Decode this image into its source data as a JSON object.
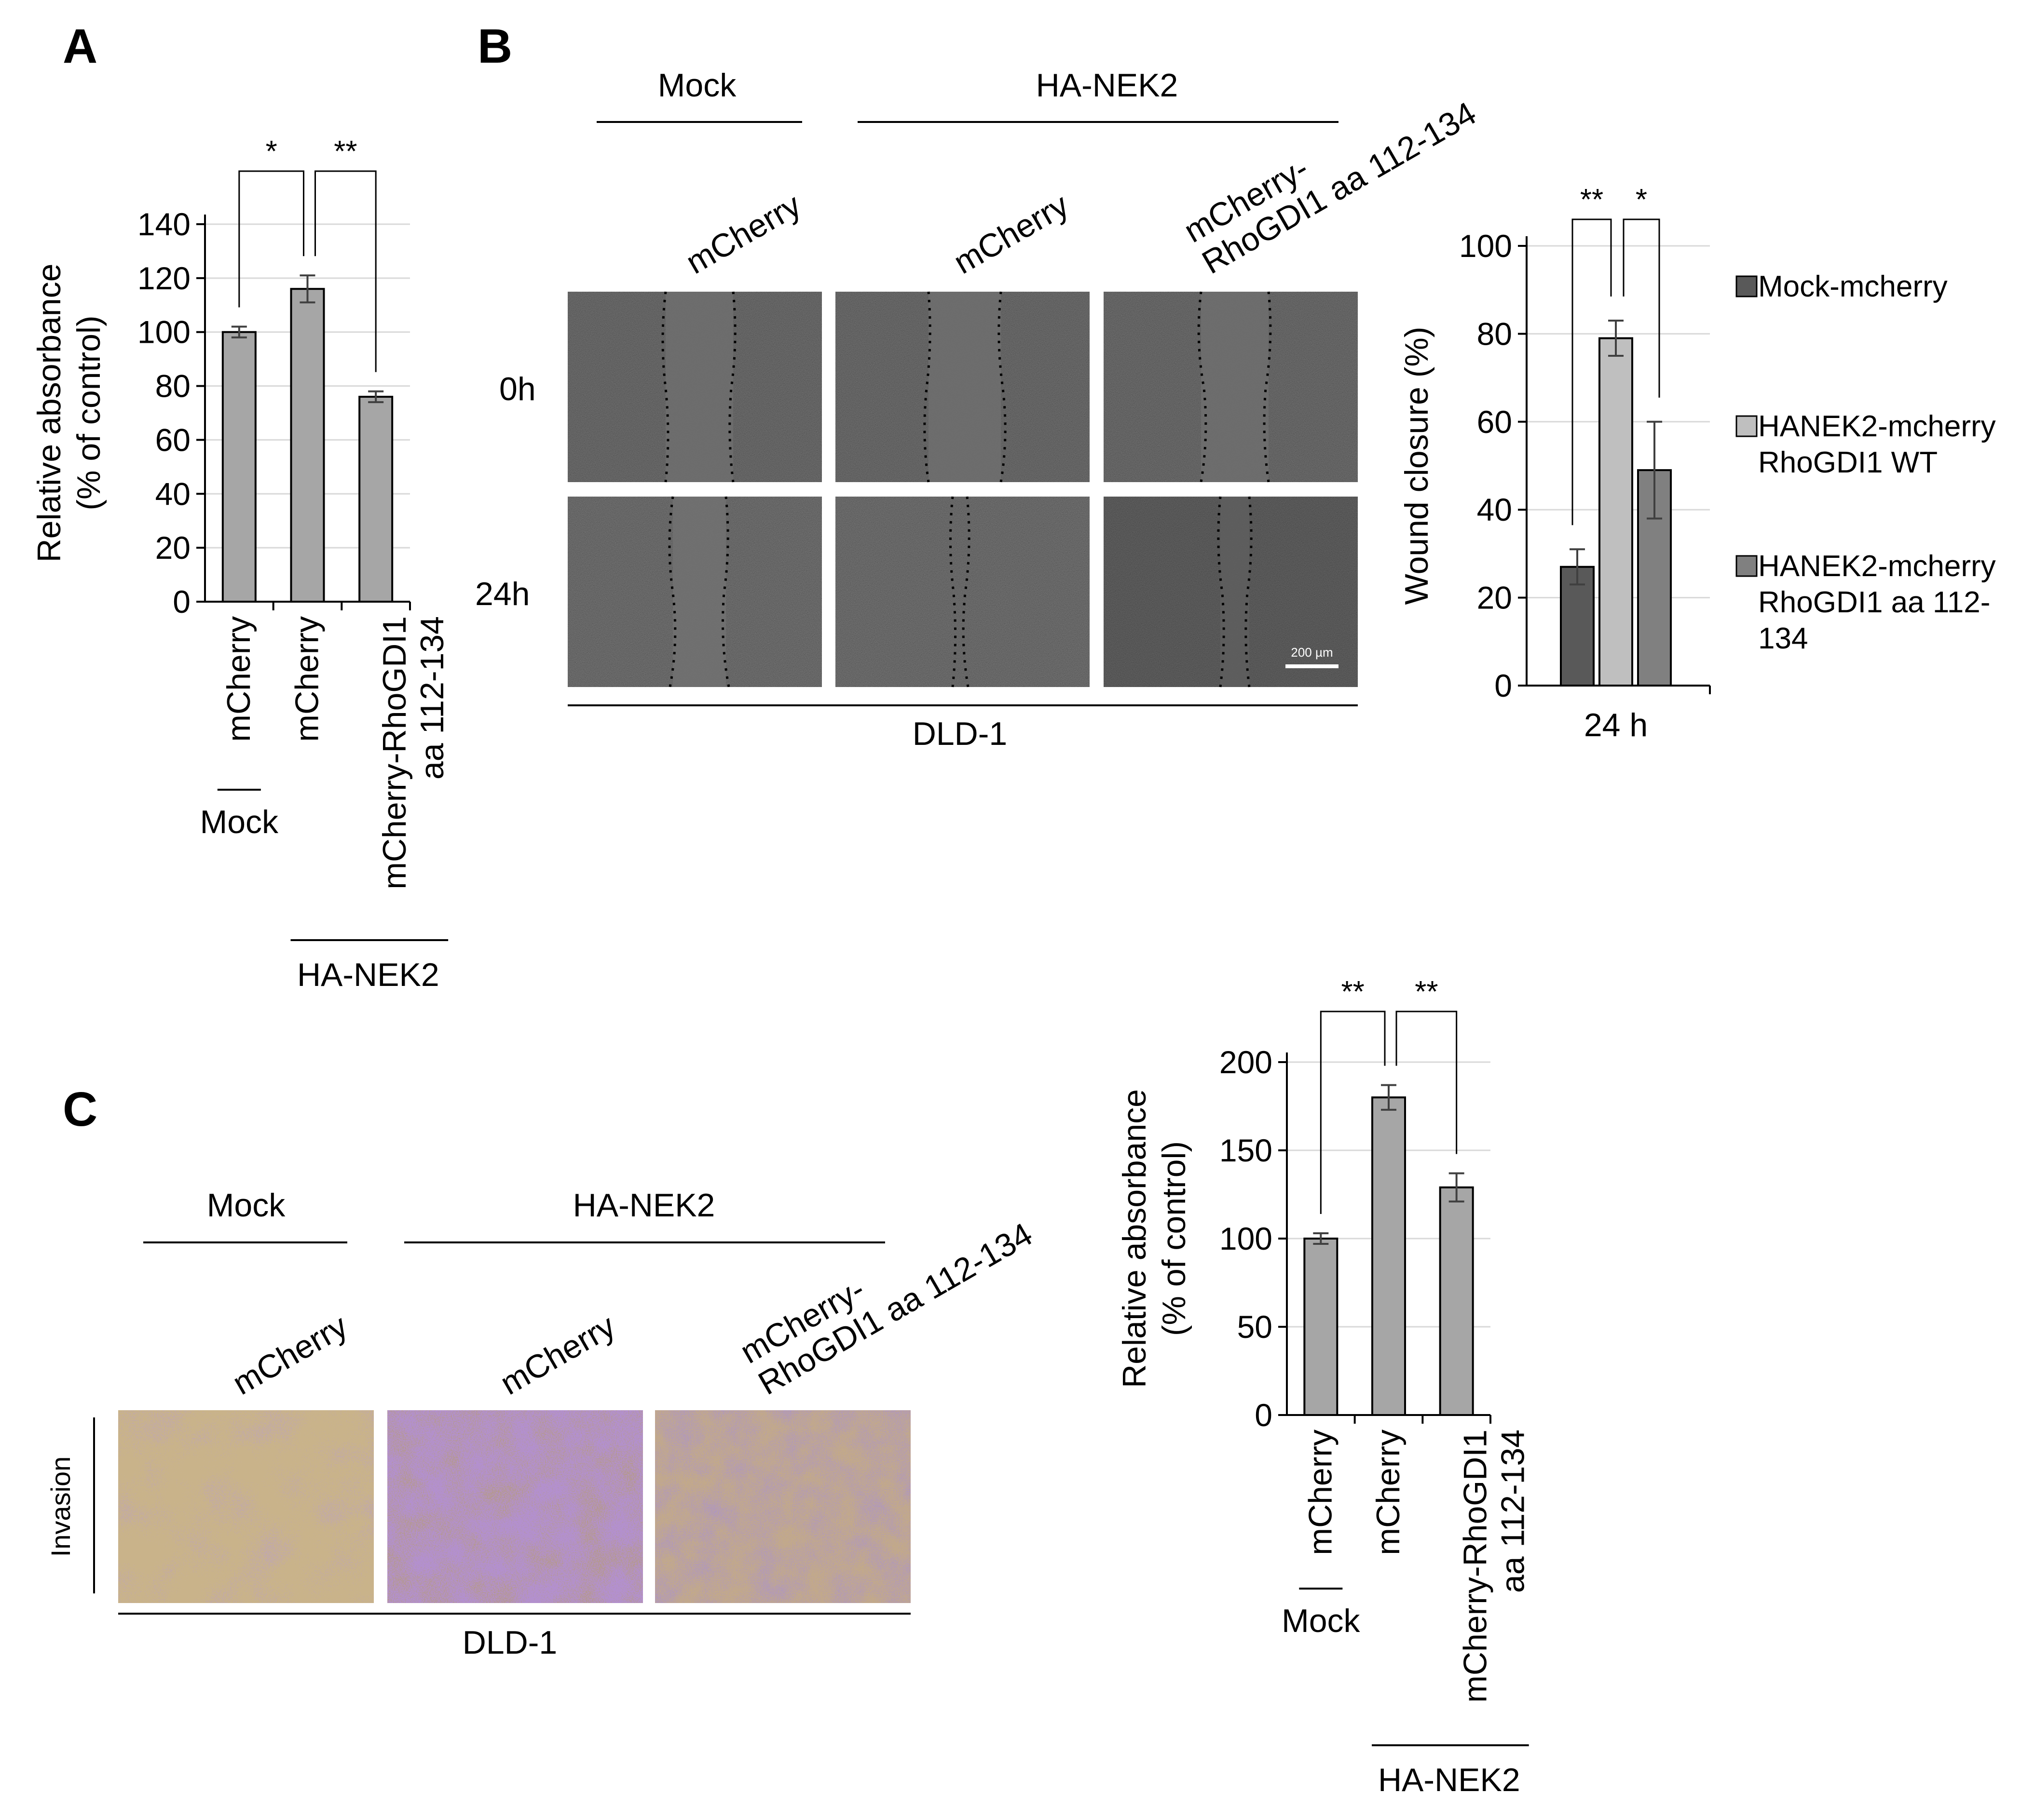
{
  "panels": {
    "a": {
      "letter": "A"
    },
    "b": {
      "letter": "B"
    },
    "c": {
      "letter": "C"
    }
  },
  "micrographs": {
    "b": {
      "group_labels": {
        "mock": "Mock",
        "nek2": "HA-NEK2"
      },
      "column_labels": [
        "mCherry",
        "mCherry",
        "mCherry-\nRhoGDI1 aa 112-134"
      ],
      "row_labels": [
        "0h",
        "24h"
      ],
      "scale_bar": "200  µm",
      "cell_line": "DLD-1"
    },
    "c": {
      "group_labels": {
        "mock": "Mock",
        "nek2": "HA-NEK2"
      },
      "column_labels": [
        "mCherry",
        "mCherry",
        "mCherry-\nRhoGDI1 aa 112-134"
      ],
      "row_label": "Invasion",
      "cell_line": "DLD-1"
    }
  },
  "chart_data": [
    {
      "id": "chart-a",
      "type": "bar",
      "ylabel": "Relative absorbance\n(% of control)",
      "ylim": [
        0,
        140
      ],
      "yticks": [
        0,
        20,
        40,
        60,
        80,
        100,
        120,
        140
      ],
      "grid": true,
      "categories": [
        "mCherry",
        "mCherry",
        "mCherry-RhoGDI1\naa 112-134"
      ],
      "values": [
        100,
        116,
        76
      ],
      "errors": [
        2,
        5,
        2
      ],
      "bar_color": "#a6a6a6",
      "group_labels": {
        "mock": "Mock",
        "nek2": "HA-NEK2"
      },
      "significance": [
        {
          "from": 0,
          "to": 1,
          "label": "*"
        },
        {
          "from": 1,
          "to": 2,
          "label": "**"
        }
      ]
    },
    {
      "id": "chart-b",
      "type": "bar",
      "ylabel": "Wound closure (%)",
      "ylim": [
        0,
        100
      ],
      "yticks": [
        0,
        20,
        40,
        60,
        80,
        100
      ],
      "grid": true,
      "xlabel_category": "24 h",
      "series": [
        {
          "name": "Mock-mcherry",
          "values": [
            27
          ],
          "errors": [
            4
          ],
          "color": "#595959"
        },
        {
          "name": "HANEK2-mcherry\nRhoGDI1 WT",
          "values": [
            79
          ],
          "errors": [
            4
          ],
          "color": "#bfbfbf"
        },
        {
          "name": "HANEK2-mcherry\nRhoGDI1 aa 112-\n134",
          "values": [
            49
          ],
          "errors": [
            11
          ],
          "color": "#808080"
        }
      ],
      "legend_position": "right",
      "significance": [
        {
          "from": 0,
          "to": 1,
          "label": "**"
        },
        {
          "from": 1,
          "to": 2,
          "label": "*"
        }
      ]
    },
    {
      "id": "chart-c",
      "type": "bar",
      "ylabel": "Relative absorbance\n(% of control)",
      "ylim": [
        0,
        200
      ],
      "yticks": [
        0,
        50,
        100,
        150,
        200
      ],
      "grid": true,
      "categories": [
        "mCherry",
        "mCherry",
        "mCherry-RhoGDI1\naa 112-134"
      ],
      "values": [
        100,
        180,
        129
      ],
      "errors": [
        3,
        7,
        8
      ],
      "bar_color": "#a6a6a6",
      "group_labels": {
        "mock": "Mock",
        "nek2": "HA-NEK2"
      },
      "significance": [
        {
          "from": 0,
          "to": 1,
          "label": "**"
        },
        {
          "from": 1,
          "to": 2,
          "label": "**"
        }
      ]
    }
  ]
}
